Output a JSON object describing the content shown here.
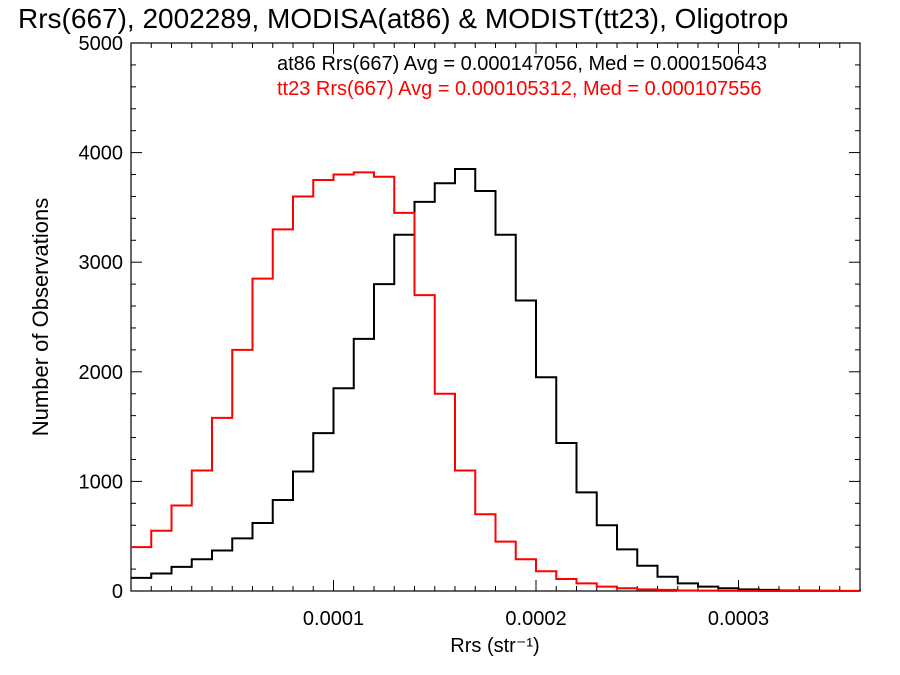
{
  "chart_data": {
    "type": "line",
    "title": "Rrs(667), 2002289, MODISA(at86) & MODIST(tt23), Oligotrop",
    "xlabel": "Rrs (str⁻¹)",
    "ylabel": "Number of Observations",
    "xlim": [
      0.0,
      0.00036
    ],
    "ylim": [
      0,
      5000
    ],
    "x_ticks": [
      "0.0001",
      "0.0002",
      "0.0003"
    ],
    "x_tick_values": [
      0.0001,
      0.0002,
      0.0003
    ],
    "y_ticks": [
      "0",
      "1000",
      "2000",
      "3000",
      "4000",
      "5000"
    ],
    "y_tick_values": [
      0,
      1000,
      2000,
      3000,
      4000,
      5000
    ],
    "grid": false,
    "annotations": [
      {
        "text": "at86 Rrs(667) Avg = 0.000147056, Med = 0.000150643",
        "color": "#000000"
      },
      {
        "text": "tt23 Rrs(667) Avg = 0.000105312, Med = 0.000107556",
        "color": "#ff0000"
      }
    ],
    "series": [
      {
        "color": "#000000",
        "x": [
          0.0,
          1e-05,
          2e-05,
          3e-05,
          4e-05,
          5e-05,
          6e-05,
          7e-05,
          8e-05,
          9e-05,
          0.0001,
          0.00011,
          0.00012,
          0.00013,
          0.00014,
          0.00015,
          0.00016,
          0.00017,
          0.00018,
          0.00019,
          0.0002,
          0.00021,
          0.00022,
          0.00023,
          0.00024,
          0.00025,
          0.00026,
          0.00027,
          0.00028,
          0.00029,
          0.0003,
          0.00031,
          0.00032,
          0.00033,
          0.00034,
          0.00035,
          0.00036
        ],
        "values": [
          120,
          160,
          220,
          290,
          370,
          480,
          620,
          830,
          1090,
          1440,
          1850,
          2300,
          2800,
          3250,
          3550,
          3720,
          3850,
          3650,
          3250,
          2650,
          1950,
          1350,
          900,
          600,
          380,
          230,
          130,
          70,
          40,
          25,
          15,
          10,
          5,
          3,
          2,
          1,
          0
        ]
      },
      {
        "color": "#ff0000",
        "x": [
          0.0,
          1e-05,
          2e-05,
          3e-05,
          4e-05,
          5e-05,
          6e-05,
          7e-05,
          8e-05,
          9e-05,
          0.0001,
          0.00011,
          0.00012,
          0.00013,
          0.00014,
          0.00015,
          0.00016,
          0.00017,
          0.00018,
          0.00019,
          0.0002,
          0.00021,
          0.00022,
          0.00023,
          0.00024,
          0.00025,
          0.00026,
          0.00027,
          0.00028,
          0.00029,
          0.0003,
          0.00031,
          0.00032,
          0.00033,
          0.00034,
          0.00035,
          0.00036
        ],
        "values": [
          400,
          550,
          780,
          1100,
          1580,
          2200,
          2850,
          3300,
          3600,
          3750,
          3800,
          3820,
          3780,
          3450,
          2700,
          1800,
          1100,
          700,
          450,
          290,
          180,
          110,
          70,
          40,
          25,
          15,
          10,
          5,
          3,
          2,
          1,
          0,
          0,
          0,
          0,
          0,
          0
        ]
      }
    ]
  }
}
